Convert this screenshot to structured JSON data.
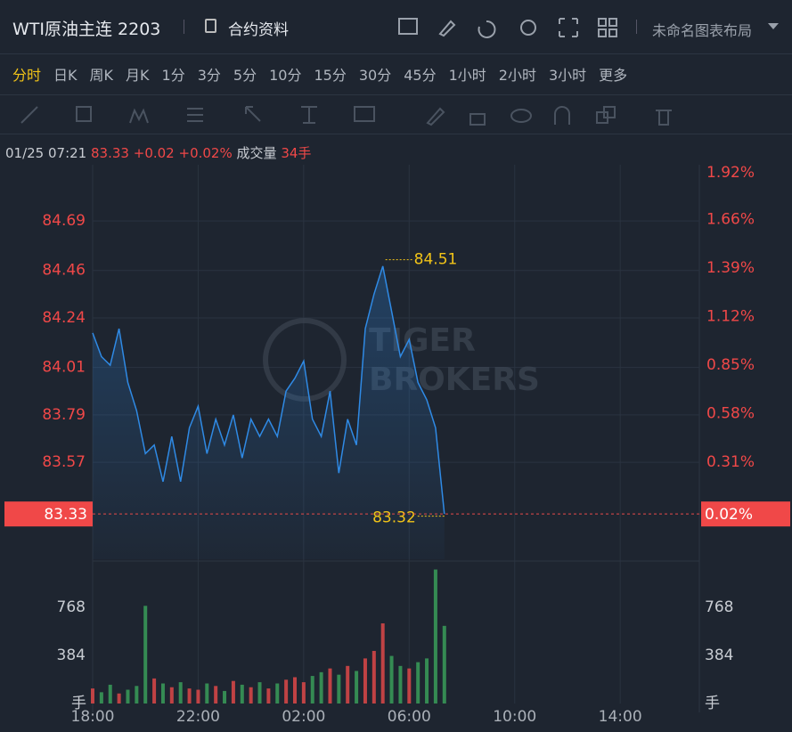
{
  "header": {
    "title": "WTI原油主连 2203",
    "contract_info": "合约资料",
    "layout_name": "未命名图表布局"
  },
  "periods": {
    "active": 0,
    "items": [
      "分时",
      "日K",
      "周K",
      "月K",
      "1分",
      "3分",
      "5分",
      "10分",
      "15分",
      "30分",
      "45分",
      "1小时",
      "2小时",
      "3小时",
      "更多"
    ]
  },
  "info": {
    "time": "01/25 07:21",
    "price": 83.33,
    "change": "+0.02",
    "change_pct": "+0.02%",
    "volume_label": "成交量",
    "volume": "34手"
  },
  "chart_data": {
    "type": "line",
    "watermark": [
      "TIGER",
      "BROKERS"
    ],
    "x": [
      0,
      20,
      40,
      60,
      80,
      100,
      120,
      140,
      160,
      180,
      200,
      220,
      240,
      260,
      280,
      300,
      320,
      340,
      360,
      380,
      400,
      420,
      440,
      460,
      480,
      500,
      520,
      540,
      560,
      580,
      600,
      620,
      640,
      660,
      680,
      700,
      720,
      740,
      760,
      780,
      800
    ],
    "xlim": [
      0,
      1380
    ],
    "xticks": [
      {
        "value": 0,
        "label": "18:00"
      },
      {
        "value": 240,
        "label": "22:00"
      },
      {
        "value": 480,
        "label": "02:00"
      },
      {
        "value": 720,
        "label": "06:00"
      },
      {
        "value": 960,
        "label": "10:00"
      },
      {
        "value": 1200,
        "label": "14:00"
      }
    ],
    "ylim": [
      83.12,
      84.93
    ],
    "yticks": [
      83.57,
      83.79,
      84.01,
      84.24,
      84.46,
      84.69
    ],
    "y2lim": [
      -0.23,
      1.94
    ],
    "y2ticks": [
      {
        "value": 0.31,
        "label": "0.31%"
      },
      {
        "value": 0.58,
        "label": "0.58%"
      },
      {
        "value": 0.85,
        "label": "0.85%"
      },
      {
        "value": 1.12,
        "label": "1.12%"
      },
      {
        "value": 1.39,
        "label": "1.39%"
      },
      {
        "value": 1.66,
        "label": "1.66%"
      },
      {
        "value": 1.92,
        "label": "1.92%"
      }
    ],
    "current_pct": {
      "value": 0.02,
      "label": "0.02%"
    },
    "grid": true,
    "series": [
      {
        "color": "#2f8ae5",
        "values": [
          84.17,
          84.06,
          84.02,
          84.19,
          83.94,
          83.81,
          83.61,
          83.65,
          83.48,
          83.69,
          83.48,
          83.73,
          83.83,
          83.61,
          83.77,
          83.65,
          83.79,
          83.59,
          83.77,
          83.69,
          83.77,
          83.69,
          83.9,
          83.96,
          84.04,
          83.77,
          83.69,
          83.9,
          83.52,
          83.77,
          83.65,
          84.19,
          84.35,
          84.48,
          84.27,
          84.06,
          84.14,
          83.94,
          83.86,
          83.73,
          83.33
        ]
      }
    ],
    "high": {
      "x": 666,
      "value": 84.51
    },
    "low": {
      "x": 800,
      "value": 83.32
    },
    "volume": {
      "up_color": "#e84a4a",
      "down_color": "#3ba55c",
      "ylim": [
        0,
        1138
      ],
      "yticks": [
        384,
        768
      ],
      "unit": "手",
      "values": [
        120,
        90,
        150,
        80,
        110,
        140,
        780,
        200,
        160,
        130,
        170,
        120,
        110,
        160,
        140,
        100,
        180,
        150,
        130,
        170,
        120,
        160,
        190,
        210,
        170,
        220,
        250,
        280,
        230,
        300,
        260,
        360,
        420,
        640,
        380,
        300,
        280,
        330,
        360,
        1070,
        620
      ]
    }
  }
}
